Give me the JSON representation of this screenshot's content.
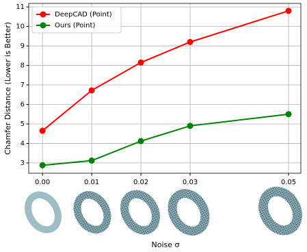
{
  "chart_data": {
    "type": "line",
    "x_label": "Noise σ",
    "y_label": "Chamfer Distance (Lower is Better)",
    "x": [
      0,
      0.01,
      0.02,
      0.03,
      0.05
    ],
    "series": [
      {
        "name": "DeepCAD (Point)",
        "color": "#ff0000",
        "values": [
          4.65,
          6.72,
          8.15,
          9.2,
          10.8
        ]
      },
      {
        "name": "Ours (Point)",
        "color": "#008000",
        "values": [
          2.88,
          3.12,
          4.12,
          4.9,
          5.5
        ]
      }
    ],
    "xlim": [
      -0.0028,
      0.0525
    ],
    "ylim": [
      2.47,
      11.18
    ],
    "xticks": [
      {
        "value": 0,
        "label": "0.00"
      },
      0.01,
      0.02,
      0.03,
      0.05
    ],
    "yticks": [
      3,
      4,
      5,
      6,
      7,
      8,
      9,
      10,
      11
    ],
    "grid": true,
    "legend": "upper left"
  }
}
